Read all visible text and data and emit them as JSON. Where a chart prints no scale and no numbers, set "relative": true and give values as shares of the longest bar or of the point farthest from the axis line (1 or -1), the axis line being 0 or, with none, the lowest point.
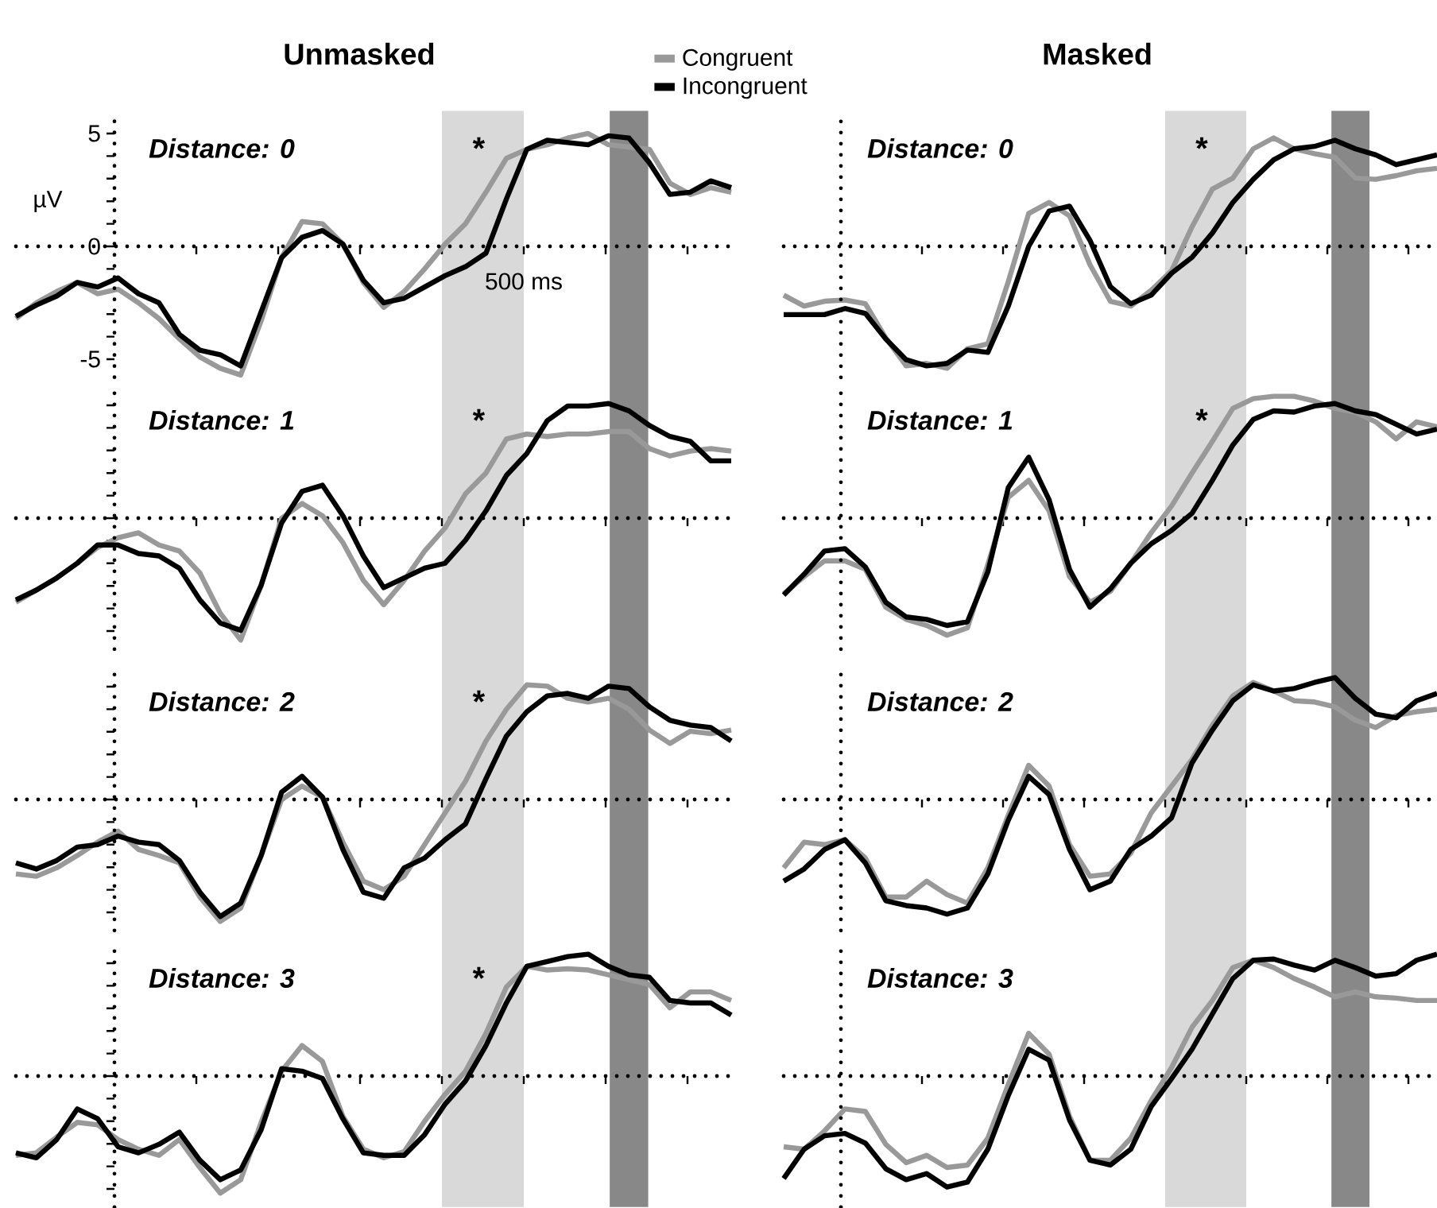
{
  "chart_data": [
    {
      "type": "line",
      "title": "Unmasked",
      "subtitle": "Distance: 0",
      "ylabel": "µV",
      "legend": "top right",
      "tick_labels": "y",
      "ylim": [
        -5.8,
        6
      ],
      "categories": [
        null,
        null,
        null,
        null,
        null,
        null,
        null,
        null,
        null,
        null,
        null,
        null,
        null,
        null,
        null,
        null,
        null,
        null,
        null,
        null,
        null,
        null,
        null,
        null,
        null,
        null,
        null,
        null,
        null,
        null,
        null,
        null,
        null,
        null,
        null,
        null
      ],
      "yticks": [
        5,
        0,
        -5
      ],
      "annotations": [
        "*",
        "500 ms"
      ],
      "series": [
        {
          "name": "Congruent",
          "color": "#999999",
          "values": [
            -3.2,
            -2.5,
            -2.0,
            -1.6,
            -2.1,
            -1.9,
            -2.5,
            -3.2,
            -4.1,
            -4.9,
            -5.4,
            -5.7,
            -3.3,
            -0.5,
            1.1,
            1.0,
            0.1,
            -1.6,
            -2.7,
            -2.0,
            -1.0,
            0.1,
            1.0,
            2.4,
            3.9,
            4.3,
            4.5,
            4.8,
            5.0,
            4.5,
            4.4,
            4.3,
            2.8,
            2.3,
            2.6,
            2.4
          ]
        },
        {
          "name": "Incongruent",
          "color": "#000000",
          "values": [
            -3.1,
            -2.6,
            -2.2,
            -1.6,
            -1.8,
            -1.4,
            -2.1,
            -2.5,
            -3.9,
            -4.6,
            -4.8,
            -5.3,
            -2.9,
            -0.5,
            0.4,
            0.7,
            0.1,
            -1.5,
            -2.5,
            -2.3,
            -1.8,
            -1.3,
            -0.9,
            -0.3,
            2.1,
            4.3,
            4.7,
            4.6,
            4.5,
            4.9,
            4.8,
            3.7,
            2.3,
            2.4,
            2.9,
            2.6
          ]
        }
      ]
    },
    {
      "type": "line",
      "title": "Masked",
      "subtitle": "Distance: 0",
      "relative": true,
      "tick_labels": false,
      "ref_lines": [
        {
          "axis": "y",
          "value": 0,
          "line_style": "dotted"
        }
      ],
      "categories": [
        null,
        null,
        null,
        null,
        null,
        null,
        null,
        null,
        null,
        null,
        null,
        null,
        null,
        null,
        null,
        null,
        null,
        null,
        null,
        null,
        null,
        null,
        null,
        null,
        null,
        null,
        null,
        null,
        null,
        null,
        null,
        null,
        null
      ],
      "annotations": [
        "*"
      ],
      "series": [
        {
          "color": "#999999",
          "values": [
            -0.4,
            -0.49,
            -0.45,
            -0.44,
            -0.47,
            -0.75,
            -0.98,
            -0.96,
            -1,
            -0.84,
            -0.8,
            -0.29,
            0.27,
            0.36,
            0.25,
            -0.15,
            -0.45,
            -0.49,
            -0.36,
            -0.2,
            0.16,
            0.47,
            0.56,
            0.8,
            0.89,
            0.8,
            0.76,
            0.73,
            0.56,
            0.55,
            0.58,
            0.62,
            0.64
          ]
        },
        {
          "color": "#000000",
          "values": [
            -0.56,
            -0.56,
            -0.56,
            -0.51,
            -0.55,
            -0.76,
            -0.93,
            -0.98,
            -0.96,
            -0.85,
            -0.87,
            -0.49,
            0,
            0.29,
            0.33,
            0.05,
            -0.33,
            -0.47,
            -0.4,
            -0.22,
            -0.09,
            0.11,
            0.36,
            0.55,
            0.71,
            0.8,
            0.82,
            0.87,
            0.8,
            0.75,
            0.67,
            0.71,
            0.75
          ]
        }
      ]
    },
    {
      "type": "line",
      "subtitle": "Distance: 1",
      "relative": true,
      "tick_labels": false,
      "ref_lines": [
        {
          "axis": "y",
          "value": 0,
          "line_style": "dotted"
        }
      ],
      "categories": [
        null,
        null,
        null,
        null,
        null,
        null,
        null,
        null,
        null,
        null,
        null,
        null,
        null,
        null,
        null,
        null,
        null,
        null,
        null,
        null,
        null,
        null,
        null,
        null,
        null,
        null,
        null,
        null,
        null,
        null,
        null,
        null,
        null,
        null,
        null,
        null
      ],
      "annotations": [
        "*"
      ],
      "series": [
        {
          "color": "#999999",
          "values": [
            -0.69,
            -0.59,
            -0.49,
            -0.37,
            -0.24,
            -0.16,
            -0.12,
            -0.22,
            -0.27,
            -0.45,
            -0.78,
            -1,
            -0.55,
            0,
            0.12,
            0.02,
            -0.2,
            -0.51,
            -0.71,
            -0.51,
            -0.27,
            -0.08,
            0.2,
            0.37,
            0.65,
            0.69,
            0.67,
            0.69,
            0.69,
            0.71,
            0.71,
            0.57,
            0.51,
            0.55,
            0.57,
            0.55
          ]
        },
        {
          "color": "#000000",
          "values": [
            -0.67,
            -0.59,
            -0.49,
            -0.37,
            -0.22,
            -0.22,
            -0.29,
            -0.31,
            -0.41,
            -0.67,
            -0.86,
            -0.92,
            -0.55,
            -0.04,
            0.22,
            0.27,
            0.02,
            -0.31,
            -0.57,
            -0.49,
            -0.41,
            -0.37,
            -0.18,
            0.06,
            0.35,
            0.53,
            0.8,
            0.92,
            0.92,
            0.94,
            0.88,
            0.76,
            0.67,
            0.63,
            0.47,
            0.47
          ]
        }
      ]
    },
    {
      "type": "line",
      "subtitle": "Distance: 1",
      "relative": true,
      "tick_labels": false,
      "ref_lines": [
        {
          "axis": "y",
          "value": 0,
          "line_style": "dotted"
        }
      ],
      "categories": [
        null,
        null,
        null,
        null,
        null,
        null,
        null,
        null,
        null,
        null,
        null,
        null,
        null,
        null,
        null,
        null,
        null,
        null,
        null,
        null,
        null,
        null,
        null,
        null,
        null,
        null,
        null,
        null,
        null,
        null,
        null,
        null,
        null
      ],
      "annotations": [
        "*"
      ],
      "series": [
        {
          "color": "#999999",
          "values": [
            -0.62,
            -0.48,
            -0.35,
            -0.35,
            -0.42,
            -0.73,
            -0.83,
            -0.88,
            -0.96,
            -0.9,
            -0.38,
            0.17,
            0.31,
            0.06,
            -0.48,
            -0.69,
            -0.6,
            -0.37,
            -0.12,
            0.1,
            0.37,
            0.63,
            0.9,
            0.98,
            1,
            1,
            0.96,
            0.9,
            0.87,
            0.79,
            0.65,
            0.79,
            0.75
          ]
        },
        {
          "color": "#000000",
          "values": [
            -0.63,
            -0.46,
            -0.27,
            -0.25,
            -0.4,
            -0.69,
            -0.81,
            -0.83,
            -0.88,
            -0.85,
            -0.44,
            0.25,
            0.5,
            0.15,
            -0.42,
            -0.73,
            -0.58,
            -0.37,
            -0.21,
            -0.1,
            0.04,
            0.31,
            0.6,
            0.81,
            0.88,
            0.87,
            0.92,
            0.94,
            0.88,
            0.85,
            0.77,
            0.69,
            0.73
          ]
        }
      ]
    },
    {
      "type": "line",
      "subtitle": "Distance: 2",
      "relative": true,
      "tick_labels": false,
      "ref_lines": [
        {
          "axis": "y",
          "value": 0,
          "line_style": "dotted"
        }
      ],
      "categories": [
        null,
        null,
        null,
        null,
        null,
        null,
        null,
        null,
        null,
        null,
        null,
        null,
        null,
        null,
        null,
        null,
        null,
        null,
        null,
        null,
        null,
        null,
        null,
        null,
        null,
        null,
        null,
        null,
        null,
        null,
        null,
        null,
        null,
        null,
        null,
        null
      ],
      "annotations": [
        "*"
      ],
      "series": [
        {
          "color": "#999999",
          "values": [
            -0.61,
            -0.63,
            -0.56,
            -0.46,
            -0.35,
            -0.26,
            -0.41,
            -0.46,
            -0.52,
            -0.8,
            -1,
            -0.89,
            -0.46,
            0,
            0.11,
            0.02,
            -0.35,
            -0.67,
            -0.74,
            -0.63,
            -0.37,
            -0.11,
            0.15,
            0.48,
            0.74,
            0.94,
            0.93,
            0.83,
            0.8,
            0.83,
            0.74,
            0.57,
            0.46,
            0.56,
            0.54,
            0.57
          ]
        },
        {
          "color": "#000000",
          "values": [
            -0.52,
            -0.57,
            -0.5,
            -0.39,
            -0.37,
            -0.3,
            -0.35,
            -0.37,
            -0.5,
            -0.76,
            -0.96,
            -0.85,
            -0.46,
            0.06,
            0.19,
            0.02,
            -0.41,
            -0.76,
            -0.81,
            -0.56,
            -0.48,
            -0.33,
            -0.2,
            0.17,
            0.52,
            0.72,
            0.85,
            0.87,
            0.83,
            0.93,
            0.91,
            0.76,
            0.65,
            0.61,
            0.59,
            0.48
          ]
        }
      ]
    },
    {
      "type": "line",
      "subtitle": "Distance: 2",
      "relative": true,
      "tick_labels": false,
      "ref_lines": [
        {
          "axis": "y",
          "value": 0,
          "line_style": "dotted"
        }
      ],
      "categories": [
        null,
        null,
        null,
        null,
        null,
        null,
        null,
        null,
        null,
        null,
        null,
        null,
        null,
        null,
        null,
        null,
        null,
        null,
        null,
        null,
        null,
        null,
        null,
        null,
        null,
        null,
        null,
        null,
        null,
        null,
        null,
        null,
        null
      ],
      "series": [
        {
          "color": "#999999",
          "values": [
            -0.56,
            -0.35,
            -0.37,
            -0.33,
            -0.48,
            -0.8,
            -0.8,
            -0.67,
            -0.78,
            -0.85,
            -0.56,
            -0.13,
            0.28,
            0.11,
            -0.37,
            -0.63,
            -0.61,
            -0.44,
            -0.11,
            0.11,
            0.33,
            0.61,
            0.85,
            0.96,
            0.89,
            0.81,
            0.8,
            0.76,
            0.65,
            0.59,
            0.69,
            0.72,
            0.74
          ]
        },
        {
          "color": "#000000",
          "values": [
            -0.67,
            -0.57,
            -0.41,
            -0.33,
            -0.52,
            -0.83,
            -0.87,
            -0.89,
            -0.94,
            -0.89,
            -0.61,
            -0.17,
            0.19,
            0.04,
            -0.41,
            -0.74,
            -0.67,
            -0.41,
            -0.3,
            -0.15,
            0.3,
            0.57,
            0.81,
            0.94,
            0.89,
            0.91,
            0.96,
            1,
            0.83,
            0.7,
            0.67,
            0.81,
            0.87
          ]
        }
      ]
    },
    {
      "type": "line",
      "subtitle": "Distance: 3",
      "relative": true,
      "tick_labels": false,
      "ref_lines": [
        {
          "axis": "y",
          "value": 0,
          "line_style": "dotted"
        }
      ],
      "categories": [
        null,
        null,
        null,
        null,
        null,
        null,
        null,
        null,
        null,
        null,
        null,
        null,
        null,
        null,
        null,
        null,
        null,
        null,
        null,
        null,
        null,
        null,
        null,
        null,
        null,
        null,
        null,
        null,
        null,
        null,
        null,
        null,
        null,
        null,
        null,
        null
      ],
      "annotations": [
        "*"
      ],
      "series": [
        {
          "color": "#999999",
          "values": [
            -0.65,
            -0.63,
            -0.5,
            -0.38,
            -0.4,
            -0.52,
            -0.6,
            -0.65,
            -0.52,
            -0.75,
            -0.96,
            -0.85,
            -0.38,
            0.04,
            0.25,
            0.12,
            -0.33,
            -0.6,
            -0.67,
            -0.62,
            -0.37,
            -0.15,
            0.04,
            0.35,
            0.73,
            0.9,
            0.87,
            0.88,
            0.87,
            0.83,
            0.79,
            0.75,
            0.56,
            0.69,
            0.69,
            0.62
          ]
        },
        {
          "color": "#000000",
          "values": [
            -0.63,
            -0.67,
            -0.52,
            -0.27,
            -0.35,
            -0.58,
            -0.63,
            -0.56,
            -0.46,
            -0.69,
            -0.85,
            -0.77,
            -0.44,
            0.06,
            0.04,
            -0.02,
            -0.35,
            -0.63,
            -0.65,
            -0.65,
            -0.48,
            -0.23,
            -0.04,
            0.25,
            0.6,
            0.9,
            0.94,
            0.98,
            1,
            0.9,
            0.83,
            0.81,
            0.62,
            0.6,
            0.6,
            0.5
          ]
        }
      ]
    },
    {
      "type": "line",
      "subtitle": "Distance: 3",
      "relative": true,
      "tick_labels": false,
      "ref_lines": [
        {
          "axis": "y",
          "value": 0,
          "line_style": "dotted"
        }
      ],
      "categories": [
        null,
        null,
        null,
        null,
        null,
        null,
        null,
        null,
        null,
        null,
        null,
        null,
        null,
        null,
        null,
        null,
        null,
        null,
        null,
        null,
        null,
        null,
        null,
        null,
        null,
        null,
        null,
        null,
        null,
        null,
        null,
        null,
        null
      ],
      "series": [
        {
          "color": "#999999",
          "values": [
            -0.58,
            -0.6,
            -0.45,
            -0.27,
            -0.29,
            -0.56,
            -0.71,
            -0.65,
            -0.75,
            -0.73,
            -0.51,
            -0.07,
            0.35,
            0.18,
            -0.33,
            -0.69,
            -0.69,
            -0.51,
            -0.2,
            0.07,
            0.4,
            0.62,
            0.89,
            0.95,
            0.89,
            0.8,
            0.73,
            0.65,
            0.69,
            0.65,
            0.64,
            0.62,
            0.62
          ]
        },
        {
          "color": "#000000",
          "values": [
            -0.84,
            -0.6,
            -0.49,
            -0.47,
            -0.55,
            -0.76,
            -0.85,
            -0.8,
            -0.91,
            -0.87,
            -0.6,
            -0.16,
            0.22,
            0.13,
            -0.36,
            -0.69,
            -0.73,
            -0.6,
            -0.25,
            -0.02,
            0.22,
            0.51,
            0.8,
            0.95,
            0.96,
            0.91,
            0.87,
            0.95,
            0.89,
            0.82,
            0.84,
            0.95,
            1
          ]
        }
      ]
    }
  ]
}
